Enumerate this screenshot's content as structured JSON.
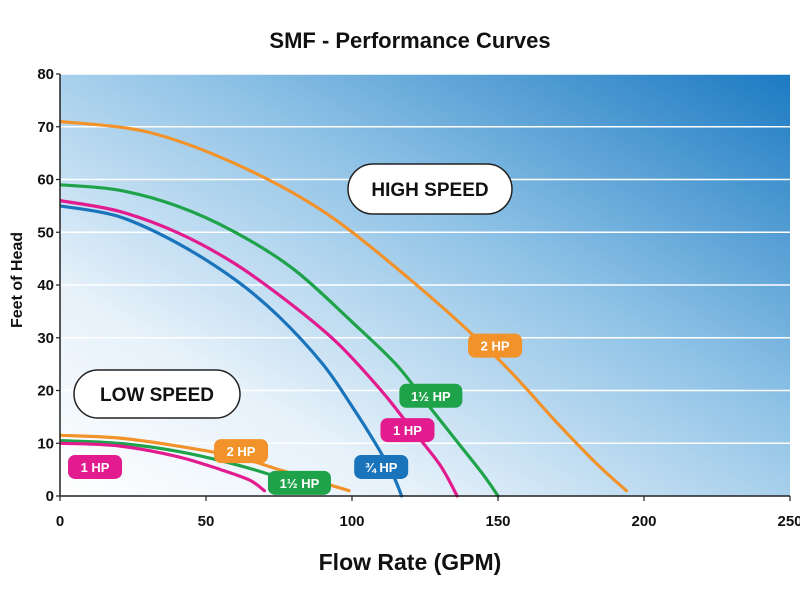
{
  "chart_data": {
    "type": "line",
    "title": "SMF - Performance Curves",
    "xlabel": "Flow Rate (GPM)",
    "ylabel": "Feet of Head",
    "xlim": [
      0,
      250
    ],
    "ylim": [
      0,
      80
    ],
    "x_ticks": [
      "0",
      "50",
      "100",
      "150",
      "200",
      "250"
    ],
    "y_ticks": [
      "0",
      "10",
      "20",
      "30",
      "40",
      "50",
      "60",
      "70",
      "80"
    ],
    "grid": "horizontal",
    "regions": [
      {
        "label": "HIGH SPEED"
      },
      {
        "label": "LOW SPEED"
      }
    ],
    "series": [
      {
        "name": "2 HP",
        "speed": "high",
        "color": "#F2922B",
        "points": [
          [
            0,
            71
          ],
          [
            30,
            69
          ],
          [
            60,
            63
          ],
          [
            90,
            54
          ],
          [
            120,
            41
          ],
          [
            150,
            26
          ],
          [
            170,
            14
          ],
          [
            184,
            6
          ],
          [
            194,
            1
          ]
        ]
      },
      {
        "name": "1½ HP",
        "speed": "high",
        "color": "#1FA34A",
        "points": [
          [
            0,
            59
          ],
          [
            20,
            58
          ],
          [
            40,
            55
          ],
          [
            60,
            50
          ],
          [
            80,
            43
          ],
          [
            100,
            33
          ],
          [
            115,
            25
          ],
          [
            125,
            18
          ],
          [
            135,
            11
          ],
          [
            145,
            4
          ],
          [
            150,
            0
          ]
        ]
      },
      {
        "name": "1 HP",
        "speed": "high",
        "color": "#E21C8E",
        "points": [
          [
            0,
            56
          ],
          [
            20,
            54
          ],
          [
            40,
            50
          ],
          [
            60,
            44
          ],
          [
            80,
            36
          ],
          [
            95,
            29
          ],
          [
            110,
            20
          ],
          [
            120,
            13
          ],
          [
            130,
            6
          ],
          [
            136,
            0
          ]
        ]
      },
      {
        "name": "¾ HP",
        "speed": "high",
        "color": "#1A74BB",
        "points": [
          [
            0,
            55
          ],
          [
            20,
            53
          ],
          [
            40,
            48
          ],
          [
            60,
            41
          ],
          [
            75,
            34
          ],
          [
            90,
            25
          ],
          [
            100,
            17
          ],
          [
            108,
            10
          ],
          [
            114,
            4
          ],
          [
            117,
            0
          ]
        ]
      },
      {
        "name": "2 HP",
        "speed": "low",
        "color": "#F2922B",
        "points": [
          [
            0,
            11.5
          ],
          [
            20,
            11
          ],
          [
            40,
            9.5
          ],
          [
            60,
            7.5
          ],
          [
            75,
            5
          ],
          [
            90,
            2.5
          ],
          [
            99,
            1
          ]
        ]
      },
      {
        "name": "1½ HP",
        "speed": "low",
        "color": "#1FA34A",
        "points": [
          [
            0,
            10.5
          ],
          [
            20,
            10
          ],
          [
            40,
            8.5
          ],
          [
            60,
            6
          ],
          [
            75,
            3.5
          ],
          [
            88,
            1
          ]
        ]
      },
      {
        "name": "1 HP",
        "speed": "low",
        "color": "#E21C8E",
        "points": [
          [
            0,
            10
          ],
          [
            20,
            9.5
          ],
          [
            40,
            7.5
          ],
          [
            55,
            5
          ],
          [
            65,
            3
          ],
          [
            70,
            1
          ]
        ]
      }
    ],
    "labels": [
      {
        "text": "2 HP",
        "speed": "high",
        "color": "#F2922B",
        "x": 149,
        "y": 28.5
      },
      {
        "text": "1½ HP",
        "speed": "high",
        "color": "#1FA34A",
        "x": 127,
        "y": 19
      },
      {
        "text": "1 HP",
        "speed": "high",
        "color": "#E21C8E",
        "x": 119,
        "y": 12.5
      },
      {
        "text": "¾ HP",
        "speed": "high",
        "color": "#1A74BB",
        "x": 110,
        "y": 5.5
      },
      {
        "text": "2 HP",
        "speed": "low",
        "color": "#F2922B",
        "x": 62,
        "y": 8.5
      },
      {
        "text": "1½ HP",
        "speed": "low",
        "color": "#1FA34A",
        "x": 82,
        "y": 2.5
      },
      {
        "text": "1 HP",
        "speed": "low",
        "color": "#E21C8E",
        "x": 12,
        "y": 5.5
      }
    ]
  }
}
